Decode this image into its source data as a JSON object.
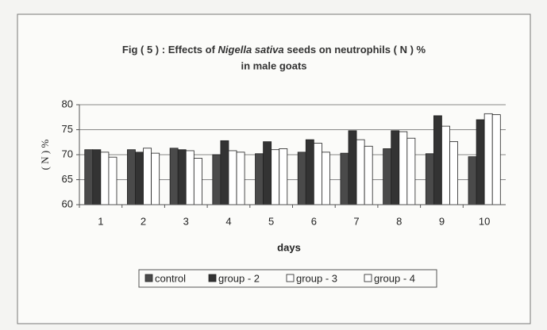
{
  "chart_data": {
    "type": "bar",
    "title": [
      "Fig ( 5 ) : Effects of ",
      "Nigella sativa",
      " seeds on neutrophils ( N ) %",
      "in male goats"
    ],
    "xlabel": "days",
    "ylabel": "( N ) %",
    "categories": [
      "1",
      "2",
      "3",
      "4",
      "5",
      "6",
      "7",
      "8",
      "9",
      "10"
    ],
    "series": [
      {
        "name": "control",
        "color": "#4a4a4a",
        "values": [
          71,
          71,
          71.3,
          70,
          70.2,
          70.5,
          70.3,
          71.2,
          70.2,
          69.6
        ]
      },
      {
        "name": "group - 2",
        "color": "#333333",
        "values": [
          71,
          70.5,
          71,
          72.8,
          72.6,
          73,
          74.8,
          74.8,
          77.8,
          77
        ]
      },
      {
        "name": "group - 3",
        "color": "#ffffff",
        "values": [
          70.5,
          71.3,
          70.8,
          70.8,
          71,
          72.3,
          73,
          74.6,
          75.7,
          78.2
        ]
      },
      {
        "name": "group - 4",
        "color": "#ffffff",
        "values": [
          69.5,
          70.3,
          69.3,
          70.5,
          71.2,
          70.5,
          71.7,
          73.3,
          72.6,
          78
        ]
      }
    ],
    "ylim": [
      60,
      80
    ],
    "yticks": [
      60,
      65,
      70,
      75,
      80
    ],
    "grid": true,
    "legend": "bottom"
  }
}
